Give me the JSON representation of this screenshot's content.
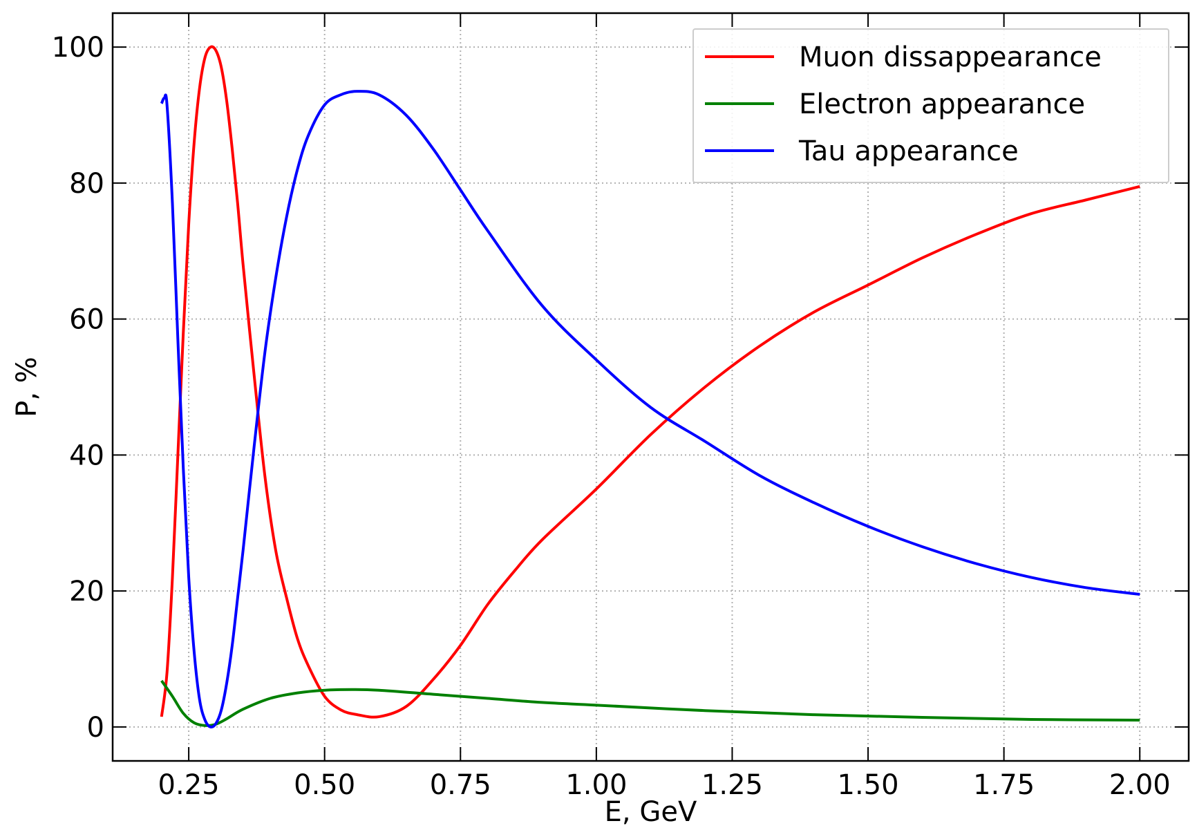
{
  "chart_data": {
    "type": "line",
    "title": "",
    "xlabel": "E, GeV",
    "ylabel": "P, %",
    "xlim": [
      0.11,
      2.09
    ],
    "ylim": [
      -5,
      105
    ],
    "xticks": [
      0.25,
      0.5,
      0.75,
      1.0,
      1.25,
      1.5,
      1.75,
      2.0
    ],
    "xtick_labels": [
      "0.25",
      "0.50",
      "0.75",
      "1.00",
      "1.25",
      "1.50",
      "1.75",
      "2.00"
    ],
    "yticks": [
      0,
      20,
      40,
      60,
      80,
      100
    ],
    "ytick_labels": [
      "0",
      "20",
      "40",
      "60",
      "80",
      "100"
    ],
    "grid": true,
    "legend_position": "top-right",
    "series": [
      {
        "name": "Muon dissappearance",
        "color": "#ff0000",
        "x": [
          0.2,
          0.21,
          0.22,
          0.23,
          0.24,
          0.25,
          0.26,
          0.27,
          0.28,
          0.29,
          0.3,
          0.31,
          0.32,
          0.33,
          0.34,
          0.35,
          0.37,
          0.39,
          0.41,
          0.43,
          0.45,
          0.47,
          0.5,
          0.53,
          0.56,
          0.6,
          0.65,
          0.7,
          0.75,
          0.8,
          0.85,
          0.9,
          1.0,
          1.1,
          1.2,
          1.3,
          1.4,
          1.5,
          1.6,
          1.7,
          1.8,
          1.9,
          2.0
        ],
        "y": [
          1.5,
          8,
          22,
          40,
          58,
          74,
          86,
          94,
          98.5,
          100,
          99.5,
          97,
          92,
          85,
          77,
          68,
          52,
          37,
          26,
          19,
          13,
          9,
          4.5,
          2.5,
          1.8,
          1.5,
          3,
          7,
          12,
          18,
          23,
          27.5,
          35,
          43,
          50,
          56,
          61,
          65,
          69,
          72.5,
          75.5,
          77.5,
          79.5
        ]
      },
      {
        "name": "Electron appearance",
        "color": "#008000",
        "x": [
          0.2,
          0.22,
          0.24,
          0.26,
          0.28,
          0.3,
          0.32,
          0.35,
          0.4,
          0.45,
          0.5,
          0.55,
          0.6,
          0.7,
          0.8,
          0.9,
          1.0,
          1.2,
          1.4,
          1.6,
          1.8,
          2.0
        ],
        "y": [
          6.8,
          4.5,
          2,
          0.6,
          0.2,
          0.4,
          1.2,
          2.6,
          4.2,
          5.0,
          5.4,
          5.5,
          5.4,
          4.8,
          4.2,
          3.6,
          3.2,
          2.4,
          1.8,
          1.4,
          1.1,
          1.0
        ]
      },
      {
        "name": "Tau appearance",
        "color": "#0000ff",
        "x": [
          0.2,
          0.205,
          0.21,
          0.22,
          0.23,
          0.24,
          0.25,
          0.26,
          0.27,
          0.28,
          0.29,
          0.3,
          0.31,
          0.32,
          0.33,
          0.34,
          0.35,
          0.37,
          0.39,
          0.41,
          0.43,
          0.45,
          0.47,
          0.5,
          0.53,
          0.56,
          0.6,
          0.65,
          0.7,
          0.75,
          0.8,
          0.9,
          1.0,
          1.1,
          1.2,
          1.3,
          1.4,
          1.5,
          1.6,
          1.7,
          1.8,
          1.9,
          2.0
        ],
        "y": [
          91.7,
          92.5,
          91.5,
          77,
          57,
          38,
          22,
          11,
          4,
          1,
          0,
          0.5,
          2.5,
          6.5,
          12,
          19,
          26,
          41,
          55,
          66,
          75,
          82,
          87,
          91.5,
          93,
          93.5,
          93,
          90,
          85,
          79,
          73,
          62,
          54,
          47,
          42,
          37,
          33,
          29.5,
          26.5,
          24,
          22,
          20.5,
          19.5
        ]
      }
    ]
  }
}
